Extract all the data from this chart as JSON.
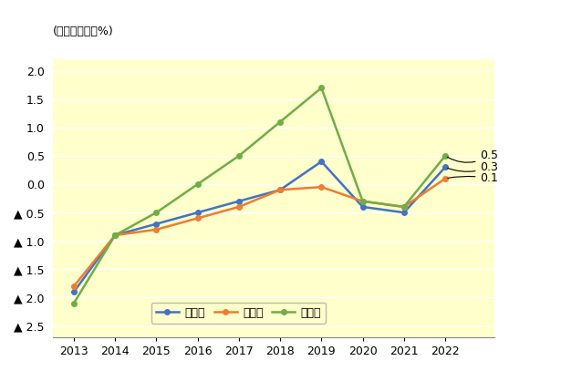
{
  "years": [
    2013,
    2014,
    2015,
    2016,
    2017,
    2018,
    2019,
    2020,
    2021,
    2022
  ],
  "zentyo": [
    -1.9,
    -0.9,
    -0.7,
    -0.5,
    -0.3,
    -0.1,
    0.4,
    -0.4,
    -0.5,
    0.3
  ],
  "jutakuchi": [
    -1.8,
    -0.9,
    -0.8,
    -0.6,
    -0.4,
    -0.1,
    -0.05,
    -0.3,
    -0.4,
    0.1
  ],
  "shogyo": [
    -2.1,
    -0.9,
    -0.5,
    0.0,
    0.5,
    1.1,
    1.7,
    -0.3,
    -0.4,
    0.5
  ],
  "zentyo_color": "#4472c4",
  "jutakuchi_color": "#ed7d31",
  "shogyo_color": "#70ad47",
  "background_color": "#ffffcc",
  "fig_background": "#ffffff",
  "grid_color": "#ffffff",
  "ytick_labels": [
    "2.0",
    "1.5",
    "1.0",
    "0.5",
    "0.0",
    "▲ 0.5",
    "▲ 1.0",
    "▲ 1.5",
    "▲ 2.0",
    "▲ 2.5"
  ],
  "ytick_values": [
    2.0,
    1.5,
    1.0,
    0.5,
    0.0,
    -0.5,
    -1.0,
    -1.5,
    -2.0,
    -2.5
  ],
  "ylim": [
    -2.7,
    2.2
  ],
  "xlim": [
    2012.5,
    2023.2
  ],
  "ylabel_top": "(前年同月比、%)",
  "legend_labels": [
    "全用途",
    "住宅地",
    "商業地"
  ],
  "line_width": 1.8,
  "marker": "o",
  "marker_size": 4,
  "fontsize_tick": 9,
  "fontsize_label": 9,
  "fontsize_legend": 9,
  "fontsize_annot": 9
}
